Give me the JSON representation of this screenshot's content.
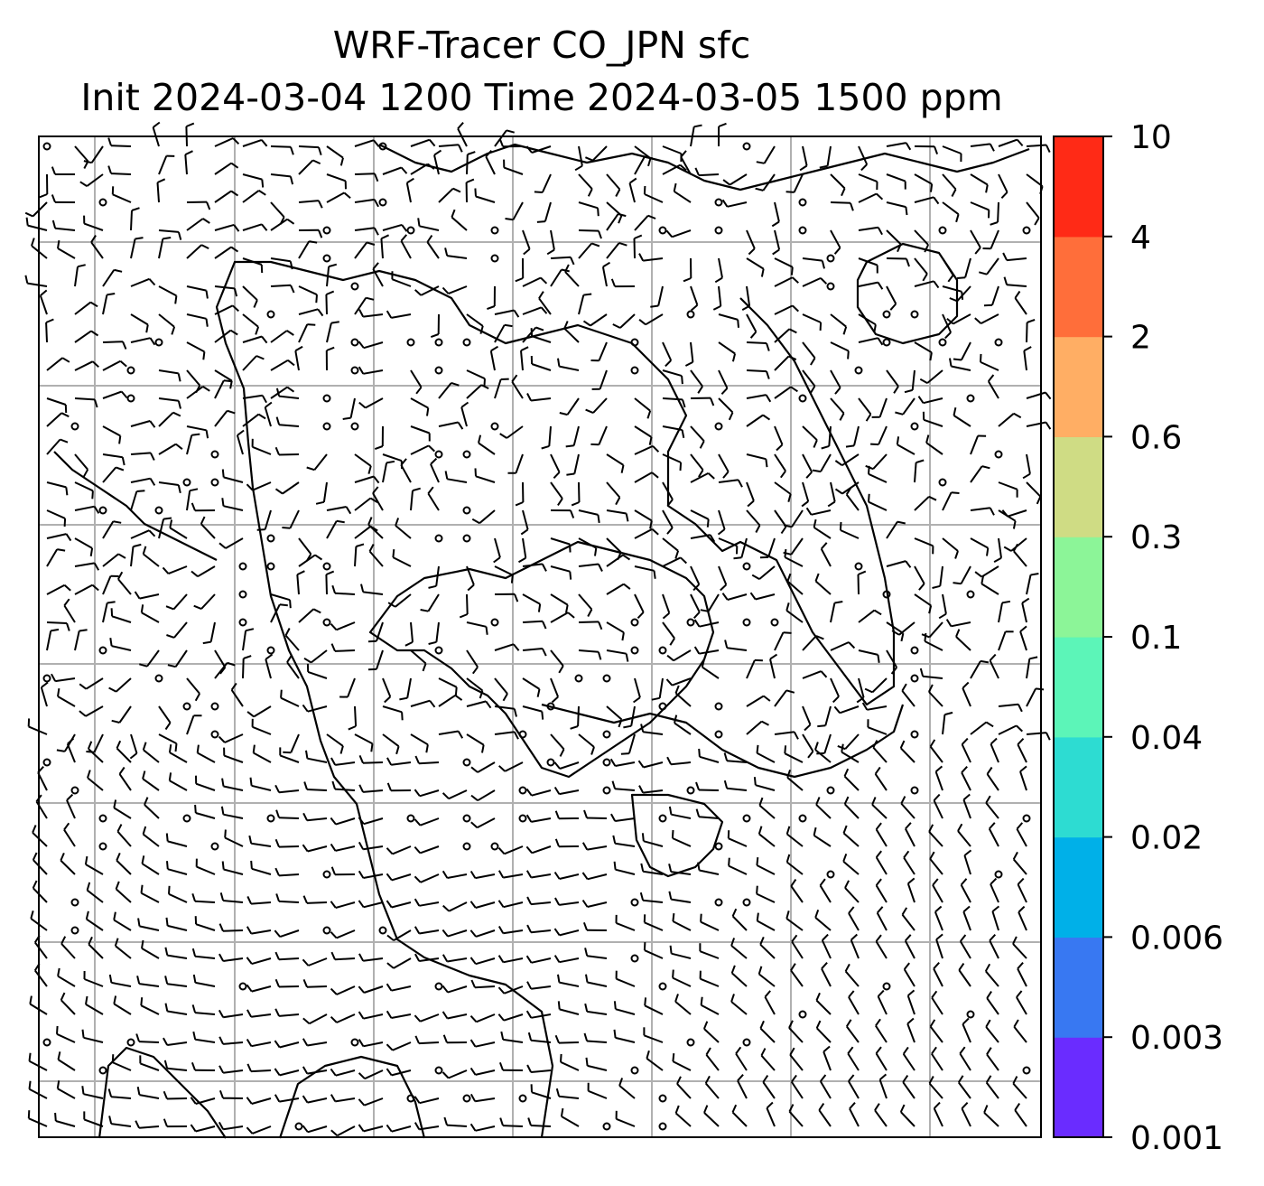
{
  "chart_data": {
    "type": "heatmap",
    "title": "WRF-Tracer CO_JPN sfc",
    "subtitle": "Init 2024-03-04 1200 Time 2024-03-05 1500 ppm",
    "field": "CO_JPN",
    "level": "sfc",
    "units": "ppm",
    "init_time": "2024-03-04 1200",
    "valid_time": "2024-03-05 1500",
    "colorbar": {
      "levels": [
        "0.001",
        "0.003",
        "0.006",
        "0.02",
        "0.04",
        "0.1",
        "0.3",
        "0.6",
        "2",
        "4",
        "10"
      ],
      "colors": [
        "#6a2cff",
        "#3878f2",
        "#00b0e8",
        "#2ddcd2",
        "#5cf5b8",
        "#8cf598",
        "#cfdc84",
        "#ffae64",
        "#ff6e3a",
        "#ff2a16"
      ]
    },
    "field_values_present": false,
    "grid": true,
    "overlays": [
      "coastlines",
      "wind barbs"
    ],
    "colors": {
      "gridline": "#b0b0b0",
      "frame": "#000000",
      "barb": "#000000"
    }
  }
}
